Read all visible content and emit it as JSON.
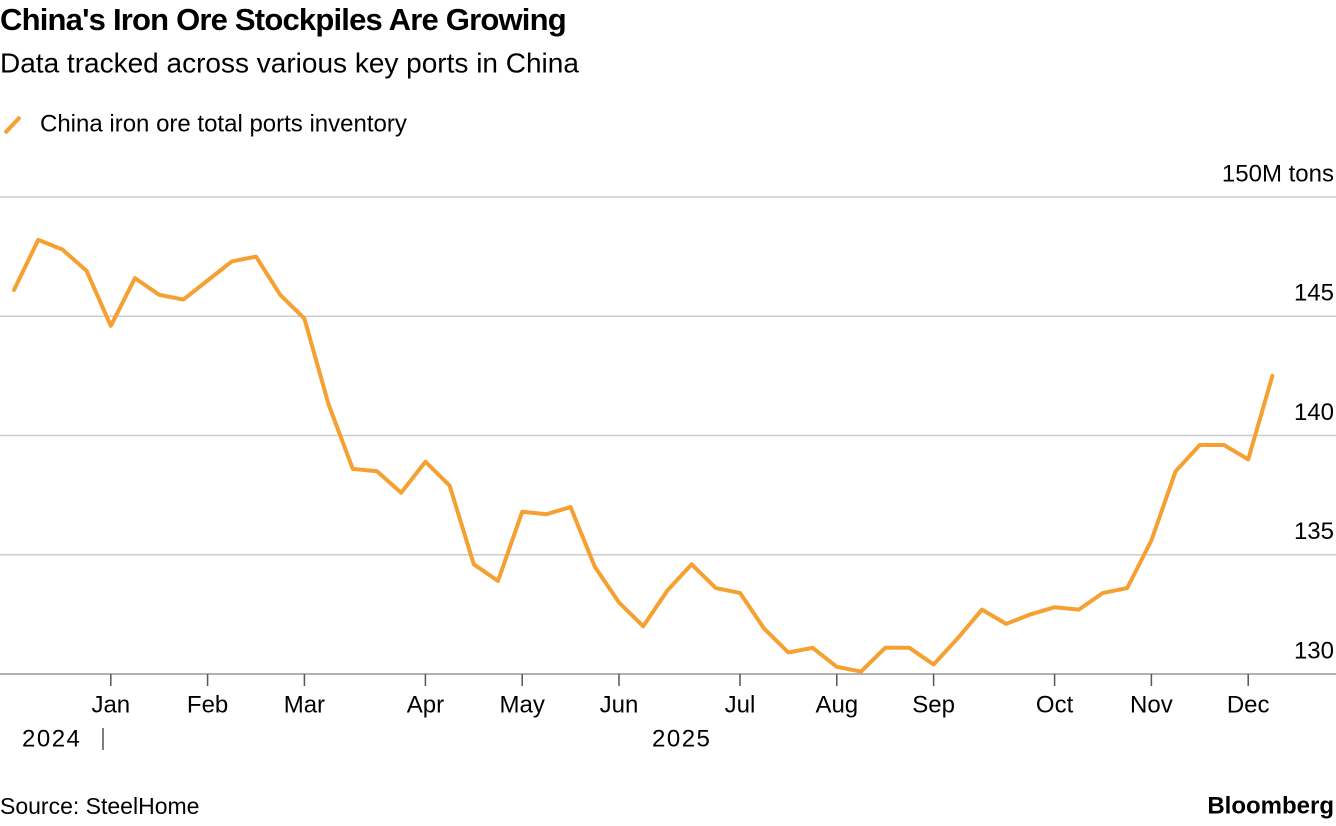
{
  "chart_data": {
    "type": "line",
    "title": "China's Iron Ore Stockpiles Are Growing",
    "subtitle": "Data tracked across various key ports in China",
    "source": "Source: SteelHome",
    "brand": "Bloomberg",
    "year_labels": [
      "2024",
      "2025"
    ],
    "categories": [
      null,
      null,
      null,
      null,
      "Jan",
      null,
      null,
      null,
      "Feb",
      null,
      null,
      null,
      "Mar",
      null,
      null,
      null,
      null,
      "Apr",
      null,
      null,
      null,
      "May",
      null,
      null,
      null,
      "Jun",
      null,
      null,
      null,
      null,
      "Jul",
      null,
      null,
      null,
      "Aug",
      null,
      null,
      null,
      "Sep",
      null,
      null,
      null,
      null,
      "Oct",
      null,
      null,
      null,
      "Nov",
      null,
      null,
      null,
      "Dec",
      null
    ],
    "series": [
      {
        "name": "China iron ore total ports inventory",
        "color": "#f5a030",
        "values": [
          146.1,
          148.2,
          147.8,
          146.9,
          144.6,
          146.6,
          145.9,
          145.7,
          146.5,
          147.3,
          147.5,
          145.9,
          144.9,
          141.3,
          138.6,
          138.5,
          137.6,
          138.9,
          137.9,
          134.6,
          133.9,
          136.8,
          136.7,
          137.0,
          134.5,
          133.0,
          132.0,
          133.5,
          134.6,
          133.6,
          133.4,
          131.9,
          130.9,
          131.1,
          130.3,
          130.1,
          131.1,
          131.1,
          130.4,
          131.5,
          132.7,
          132.1,
          132.5,
          132.8,
          132.7,
          133.4,
          133.6,
          135.6,
          138.5,
          139.6,
          139.6,
          139.0,
          142.5
        ]
      }
    ],
    "ylim": [
      130,
      150
    ],
    "yticks": [
      130,
      135,
      140,
      145,
      {
        "value": 150,
        "label": "150M tons"
      }
    ],
    "grid": true
  }
}
